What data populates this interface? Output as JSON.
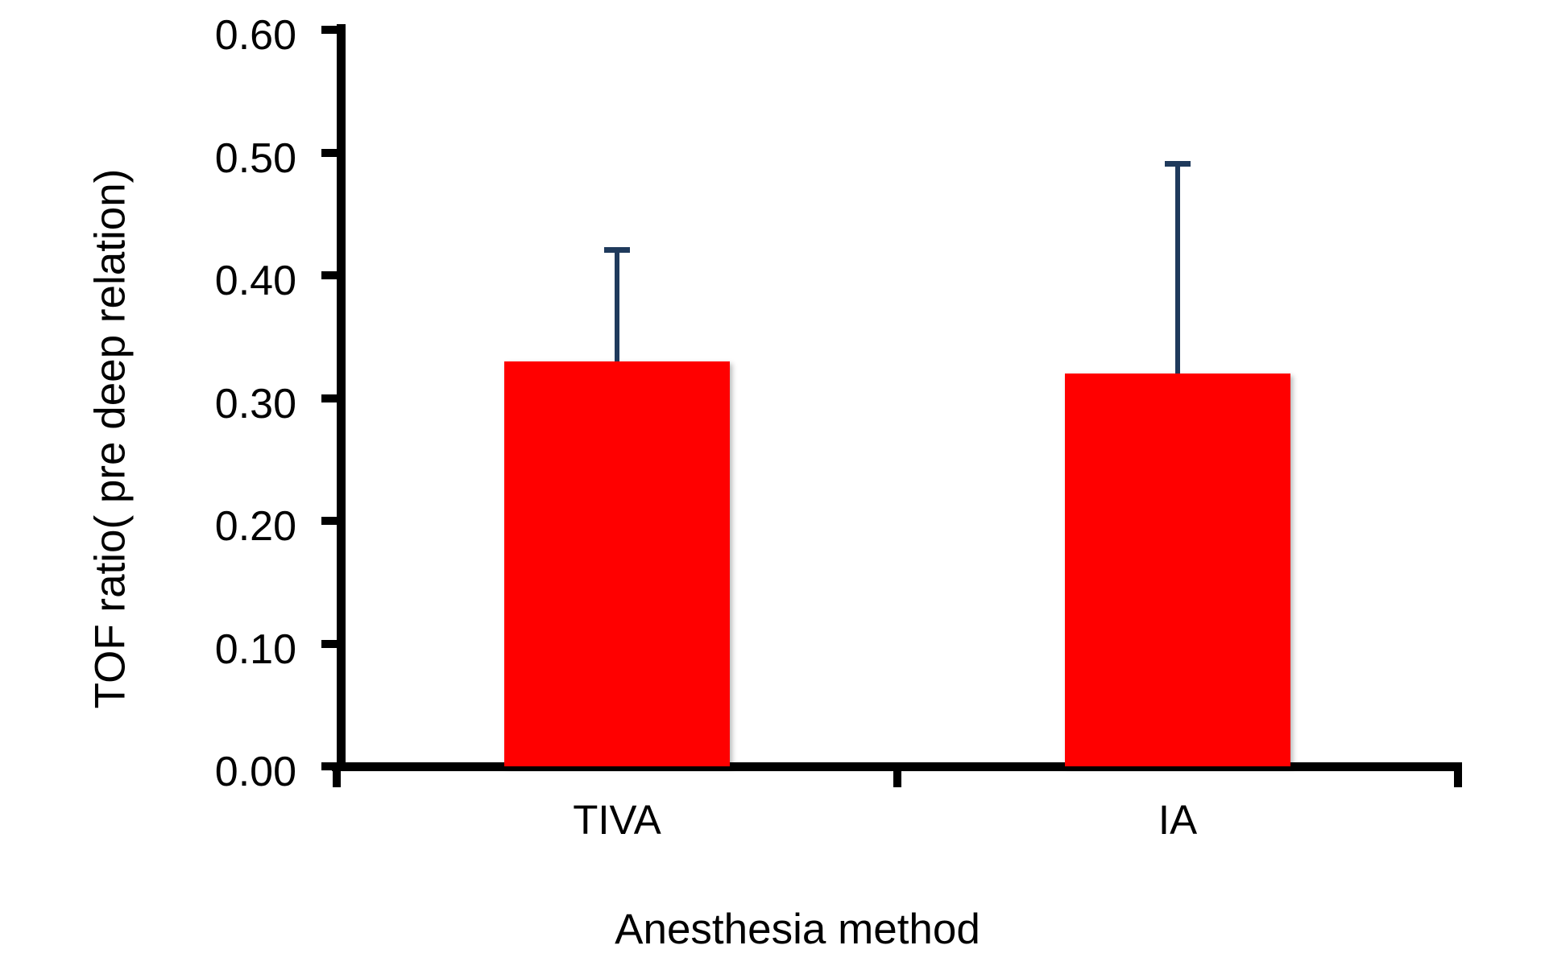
{
  "chart_data": {
    "type": "bar",
    "title": "",
    "xlabel": "Anesthesia method",
    "ylabel": "TOF ratio( pre deep relation)",
    "categories": [
      "TIVA",
      "IA"
    ],
    "series": [
      {
        "name": "TOF ratio",
        "values": [
          0.33,
          0.32
        ],
        "error_plus": [
          0.09,
          0.17
        ],
        "error_top_values": [
          0.42,
          0.49
        ]
      }
    ],
    "ytick_labels": [
      "0.00",
      "0.10",
      "0.20",
      "0.30",
      "0.40",
      "0.50",
      "0.60"
    ],
    "ylim": [
      0.0,
      0.6
    ],
    "grid": "off",
    "legend": "none",
    "bar_color": "#FF0000",
    "error_bar_color": "#1F3A5C",
    "axis_color": "#000000"
  }
}
